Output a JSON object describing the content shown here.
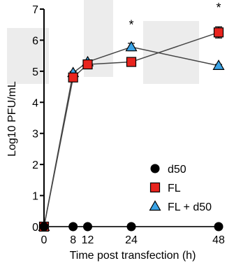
{
  "chart_data": {
    "type": "scatter",
    "title": "",
    "xlabel": "Time post transfection (h)",
    "ylabel": "Log10 PFU/mL",
    "xlim": [
      0,
      48
    ],
    "ylim": [
      0,
      7
    ],
    "x_ticks": [
      0,
      8,
      12,
      24,
      48
    ],
    "y_ticks": [
      0,
      1,
      2,
      3,
      4,
      5,
      6,
      7
    ],
    "grid": false,
    "legend_position": "bottom-right",
    "series": [
      {
        "name": "d50",
        "marker": "circle",
        "color": "#000000",
        "x": [
          0,
          8,
          12,
          24,
          48
        ],
        "y": [
          0,
          0,
          0,
          0,
          0
        ]
      },
      {
        "name": "FL",
        "marker": "square",
        "color": "#e8241e",
        "x": [
          0,
          8,
          12,
          24,
          48
        ],
        "y": [
          0,
          4.8,
          5.22,
          5.3,
          6.25
        ],
        "err": [
          0,
          0.05,
          0.05,
          0.05,
          0.18
        ]
      },
      {
        "name": "FL + d50",
        "marker": "triangle",
        "color": "#3aa3e6",
        "x": [
          0,
          8,
          12,
          24,
          48
        ],
        "y": [
          0,
          4.95,
          5.3,
          5.78,
          5.18
        ],
        "err": [
          0,
          0.04,
          0.05,
          0.12,
          0.04
        ]
      }
    ],
    "annotations": [
      {
        "text": "*",
        "x": 24,
        "y": 6.45
      },
      {
        "text": "*",
        "x": 48,
        "y": 7.0
      }
    ]
  }
}
